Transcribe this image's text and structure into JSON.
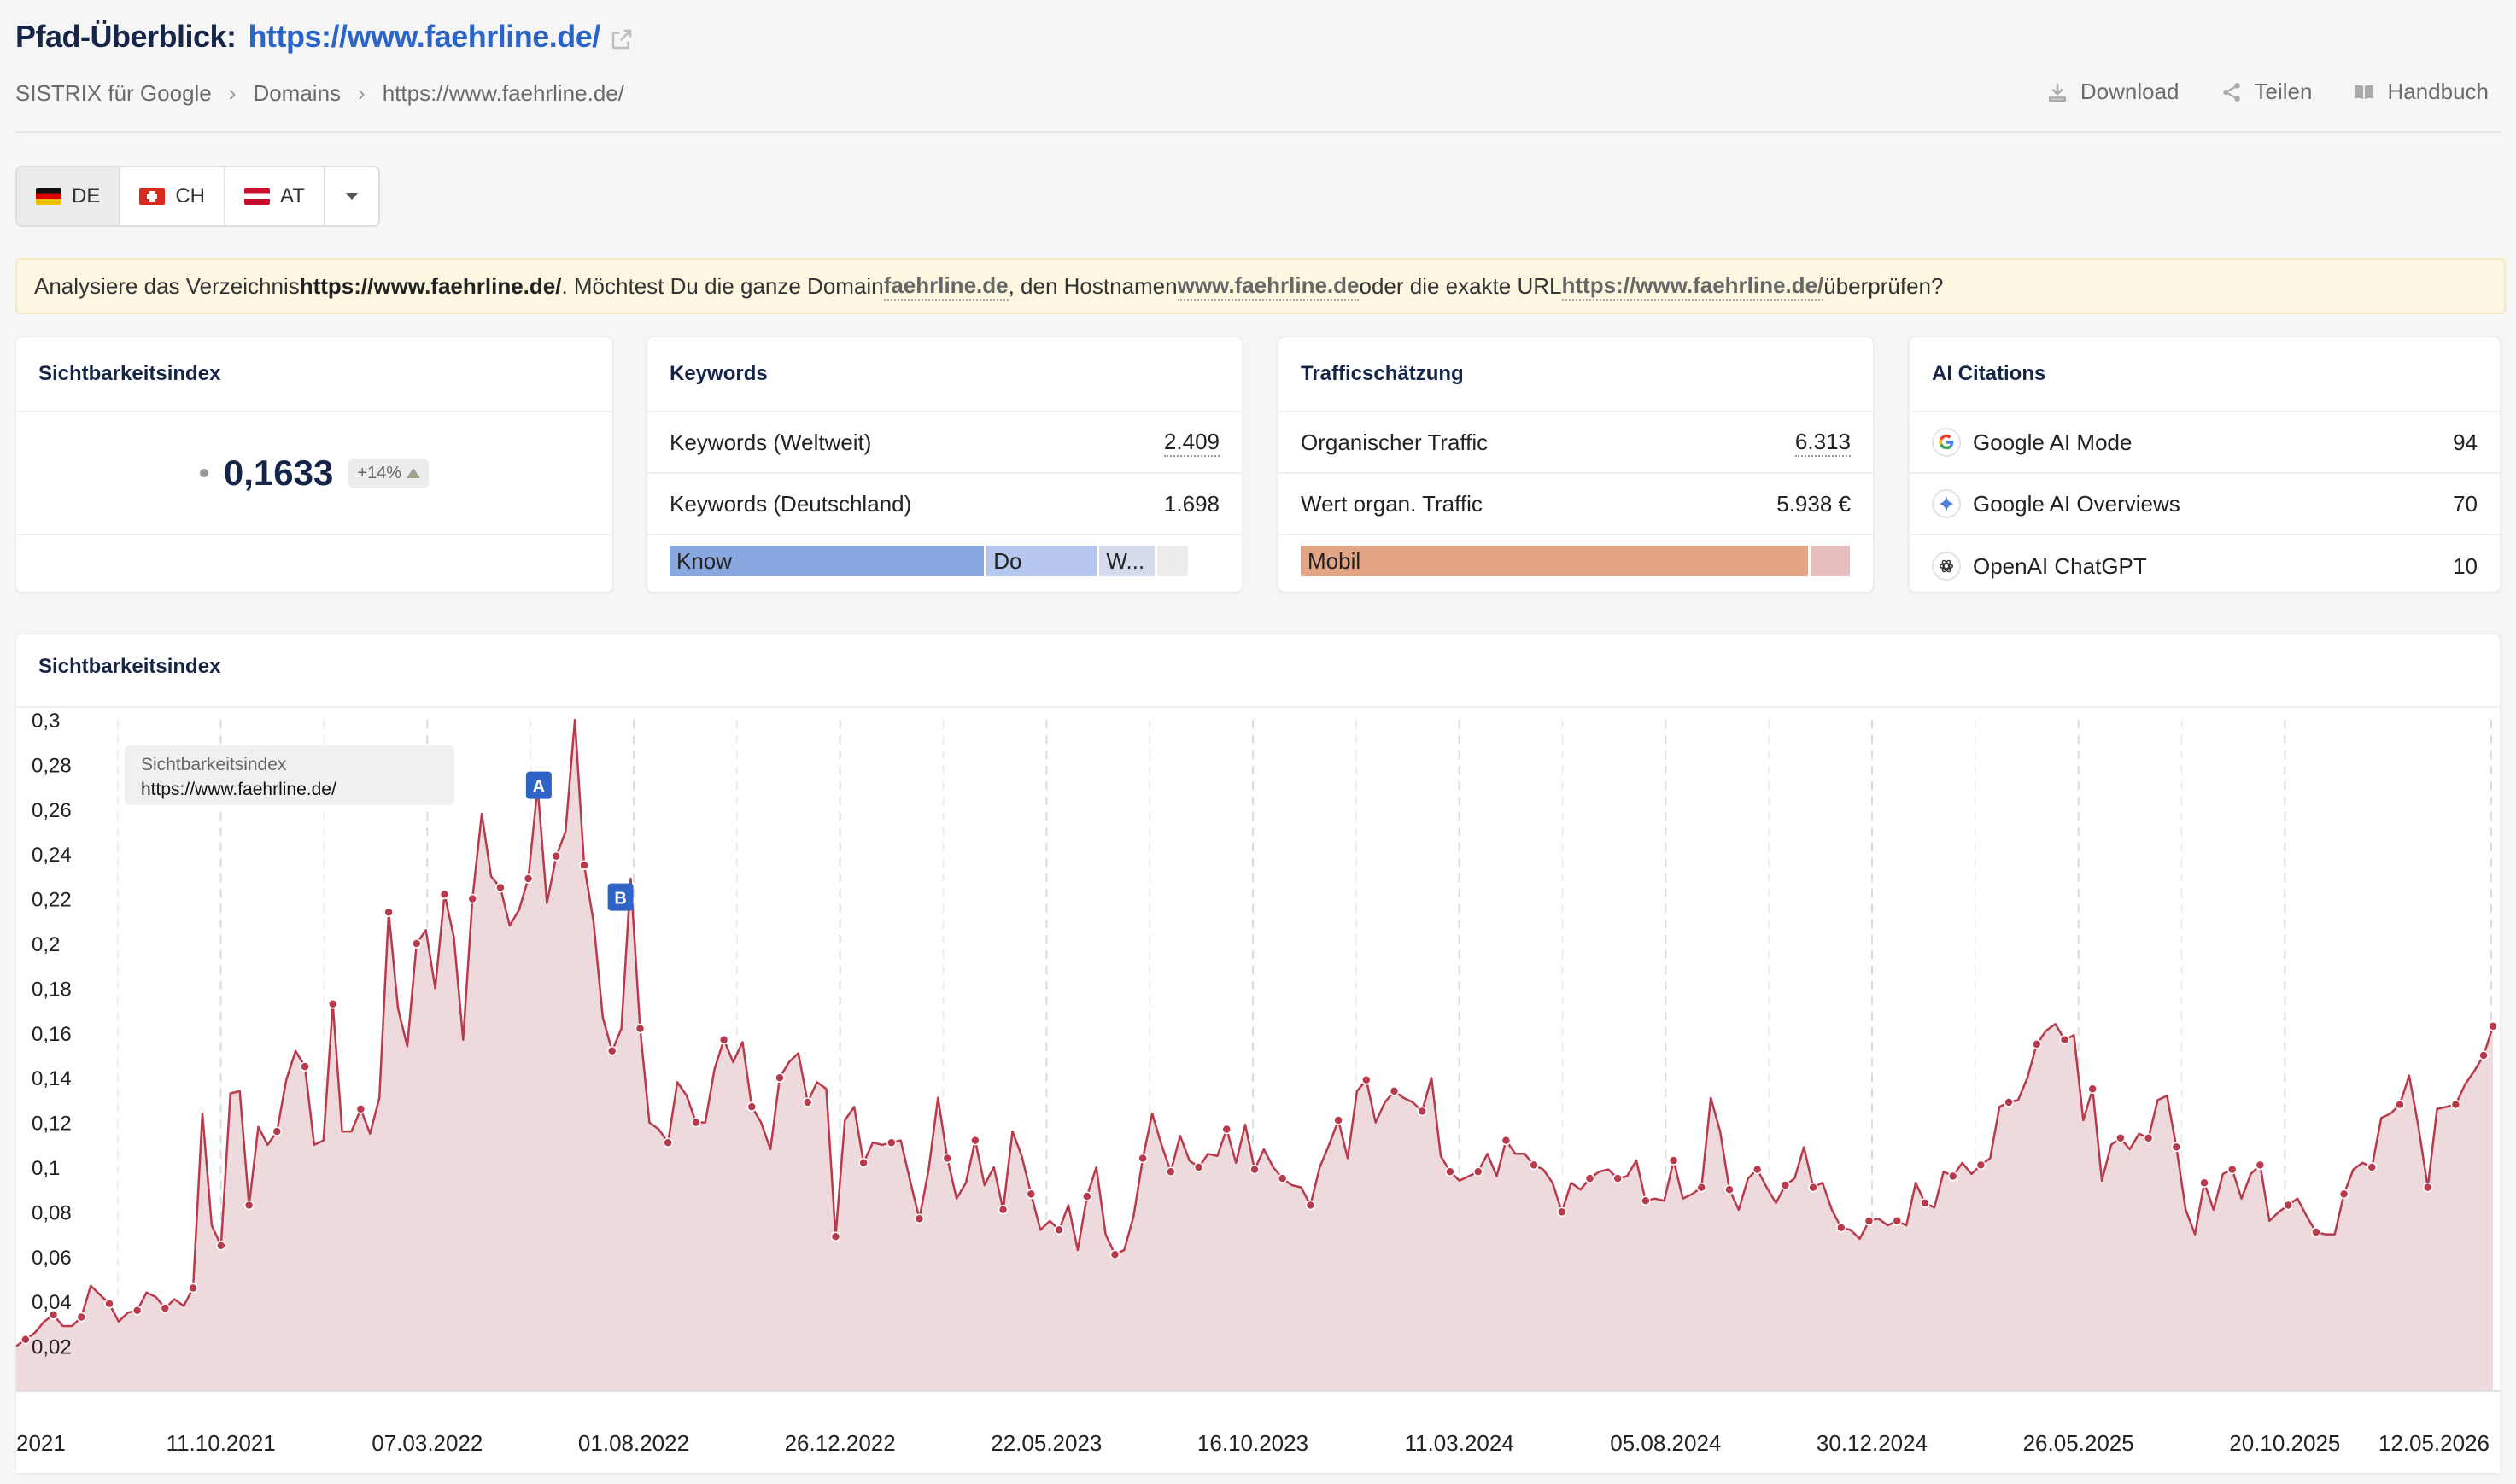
{
  "header": {
    "title_prefix": "Pfad-Überblick:",
    "title_url": "https://www.faehrline.de/"
  },
  "breadcrumb": [
    "SISTRIX für Google",
    "Domains",
    "https://www.faehrline.de/"
  ],
  "actions": {
    "download": "Download",
    "share": "Teilen",
    "manual": "Handbuch"
  },
  "countries": [
    "DE",
    "CH",
    "AT"
  ],
  "notice": {
    "t1": "Analysiere das Verzeichnis ",
    "dir": "https://www.faehrline.de/",
    "t2": ". Möchtest Du die ganze Domain ",
    "domain": "faehrline.de",
    "t3": ", den Hostnamen ",
    "host": "www.faehrline.de",
    "t4": " oder die exakte URL ",
    "url": "https://www.faehrline.de/",
    "t5": " überprüfen?"
  },
  "visibility_card": {
    "title": "Sichtbarkeitsindex",
    "value": "0,1633",
    "change": "+14%"
  },
  "keywords_card": {
    "title": "Keywords",
    "rows": [
      {
        "label": "Keywords (Weltweit)",
        "value": "2.409"
      },
      {
        "label": "Keywords (Deutschland)",
        "value": "1.698"
      }
    ],
    "intent": [
      {
        "label": "Know",
        "share": 0.57,
        "color": "#8aa8e0"
      },
      {
        "label": "Do",
        "share": 0.2,
        "color": "#b5c7ee"
      },
      {
        "label": "W...",
        "share": 0.1,
        "color": "#d4dbea"
      },
      {
        "label": "",
        "share": 0.055,
        "color": "#ececec"
      }
    ]
  },
  "traffic_card": {
    "title": "Trafficschätzung",
    "rows": [
      {
        "label": "Organischer Traffic",
        "value": "6.313"
      },
      {
        "label": "Wert organ. Traffic",
        "value": "5.938 €"
      }
    ],
    "device": [
      {
        "label": "Mobil",
        "share": 0.92,
        "color": "#e2a585"
      },
      {
        "label": "",
        "share": 0.07,
        "color": "#e9bebe"
      }
    ]
  },
  "ai_card": {
    "title": "AI Citations",
    "rows": [
      {
        "icon": "google-g-icon",
        "label": "Google AI Mode",
        "value": "94"
      },
      {
        "icon": "sparkle-icon",
        "label": "Google AI Overviews",
        "value": "70"
      },
      {
        "icon": "openai-icon",
        "label": "OpenAI ChatGPT",
        "value": "10"
      }
    ]
  },
  "chart_data": {
    "type": "area",
    "title": "Sichtbarkeitsindex",
    "legend": {
      "title": "Sichtbarkeitsindex",
      "series": "https://www.faehrline.de/"
    },
    "ylim": [
      0,
      0.3
    ],
    "yticks": [
      "0,02",
      "0,04",
      "0,06",
      "0,08",
      "0,1",
      "0,12",
      "0,14",
      "0,16",
      "0,18",
      "0,2",
      "0,22",
      "0,24",
      "0,26",
      "0,28",
      "0,3"
    ],
    "xticks": [
      "2021",
      "11.10.2021",
      "07.03.2022",
      "01.08.2022",
      "26.12.2022",
      "22.05.2023",
      "16.10.2023",
      "11.03.2024",
      "05.08.2024",
      "30.12.2024",
      "26.05.2025",
      "20.10.2025",
      "12.05.2026"
    ],
    "annotations": [
      {
        "label": "A",
        "x": 0.211,
        "y": 0.27
      },
      {
        "label": "B",
        "x": 0.244,
        "y": 0.22
      }
    ],
    "color": "#b83a4b",
    "fill": "#eedadc",
    "values": [
      0.02,
      0.023,
      0.026,
      0.031,
      0.034,
      0.029,
      0.029,
      0.033,
      0.047,
      0.043,
      0.039,
      0.031,
      0.035,
      0.036,
      0.044,
      0.042,
      0.037,
      0.041,
      0.038,
      0.046,
      0.124,
      0.074,
      0.065,
      0.133,
      0.134,
      0.083,
      0.118,
      0.11,
      0.116,
      0.139,
      0.152,
      0.145,
      0.11,
      0.112,
      0.173,
      0.116,
      0.116,
      0.126,
      0.115,
      0.131,
      0.214,
      0.171,
      0.154,
      0.2,
      0.206,
      0.18,
      0.222,
      0.203,
      0.157,
      0.22,
      0.258,
      0.23,
      0.225,
      0.208,
      0.215,
      0.229,
      0.27,
      0.218,
      0.239,
      0.25,
      0.3,
      0.235,
      0.21,
      0.167,
      0.152,
      0.162,
      0.229,
      0.162,
      0.12,
      0.117,
      0.111,
      0.138,
      0.132,
      0.12,
      0.12,
      0.144,
      0.157,
      0.147,
      0.156,
      0.127,
      0.12,
      0.108,
      0.14,
      0.147,
      0.151,
      0.129,
      0.138,
      0.135,
      0.069,
      0.121,
      0.127,
      0.102,
      0.111,
      0.11,
      0.111,
      0.112,
      0.094,
      0.077,
      0.099,
      0.131,
      0.104,
      0.086,
      0.093,
      0.112,
      0.092,
      0.1,
      0.081,
      0.116,
      0.105,
      0.088,
      0.072,
      0.076,
      0.072,
      0.083,
      0.063,
      0.087,
      0.1,
      0.07,
      0.061,
      0.063,
      0.078,
      0.104,
      0.124,
      0.11,
      0.098,
      0.114,
      0.103,
      0.1,
      0.106,
      0.105,
      0.117,
      0.102,
      0.119,
      0.099,
      0.108,
      0.1,
      0.095,
      0.092,
      0.091,
      0.083,
      0.1,
      0.11,
      0.121,
      0.104,
      0.134,
      0.139,
      0.12,
      0.129,
      0.134,
      0.131,
      0.129,
      0.125,
      0.14,
      0.105,
      0.098,
      0.094,
      0.096,
      0.098,
      0.106,
      0.096,
      0.112,
      0.106,
      0.106,
      0.101,
      0.099,
      0.093,
      0.08,
      0.093,
      0.09,
      0.095,
      0.098,
      0.099,
      0.095,
      0.096,
      0.103,
      0.085,
      0.086,
      0.085,
      0.103,
      0.086,
      0.088,
      0.091,
      0.131,
      0.116,
      0.09,
      0.081,
      0.095,
      0.099,
      0.091,
      0.084,
      0.092,
      0.095,
      0.109,
      0.091,
      0.093,
      0.081,
      0.073,
      0.072,
      0.068,
      0.076,
      0.077,
      0.074,
      0.076,
      0.074,
      0.093,
      0.084,
      0.082,
      0.098,
      0.096,
      0.102,
      0.097,
      0.101,
      0.104,
      0.127,
      0.129,
      0.13,
      0.14,
      0.155,
      0.161,
      0.164,
      0.157,
      0.159,
      0.121,
      0.135,
      0.094,
      0.11,
      0.113,
      0.108,
      0.115,
      0.113,
      0.13,
      0.132,
      0.109,
      0.081,
      0.07,
      0.093,
      0.081,
      0.097,
      0.099,
      0.086,
      0.097,
      0.101,
      0.076,
      0.08,
      0.083,
      0.086,
      0.078,
      0.071,
      0.07,
      0.07,
      0.088,
      0.099,
      0.102,
      0.1,
      0.122,
      0.124,
      0.128,
      0.141,
      0.118,
      0.091,
      0.126,
      0.127,
      0.128,
      0.137,
      0.143,
      0.15,
      0.163
    ]
  }
}
